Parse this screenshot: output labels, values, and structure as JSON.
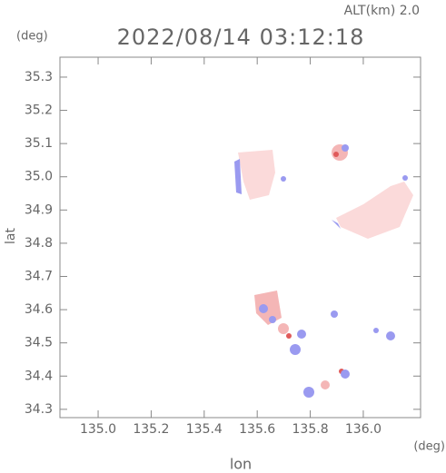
{
  "chart_data": {
    "type": "map",
    "title": "2022/08/14 03:12:18",
    "subtitle": "ALT(km) 2.0",
    "y_unit": "(deg)",
    "x_unit": "(deg)",
    "ylabel": "lat",
    "xlabel": "lon",
    "xlim": [
      134.856,
      136.216
    ],
    "ylim": [
      34.275,
      35.36
    ],
    "xticks": [
      {
        "value": 135,
        "label": "135.0"
      },
      135.2,
      135.4,
      135.6,
      135.8,
      {
        "value": 136,
        "label": "136.0"
      }
    ],
    "yticks": [
      35.3,
      35.2,
      35.1,
      {
        "value": 35,
        "label": "35.0"
      },
      34.9,
      34.8,
      34.7,
      34.6,
      34.5,
      34.4,
      34.3
    ]
  }
}
